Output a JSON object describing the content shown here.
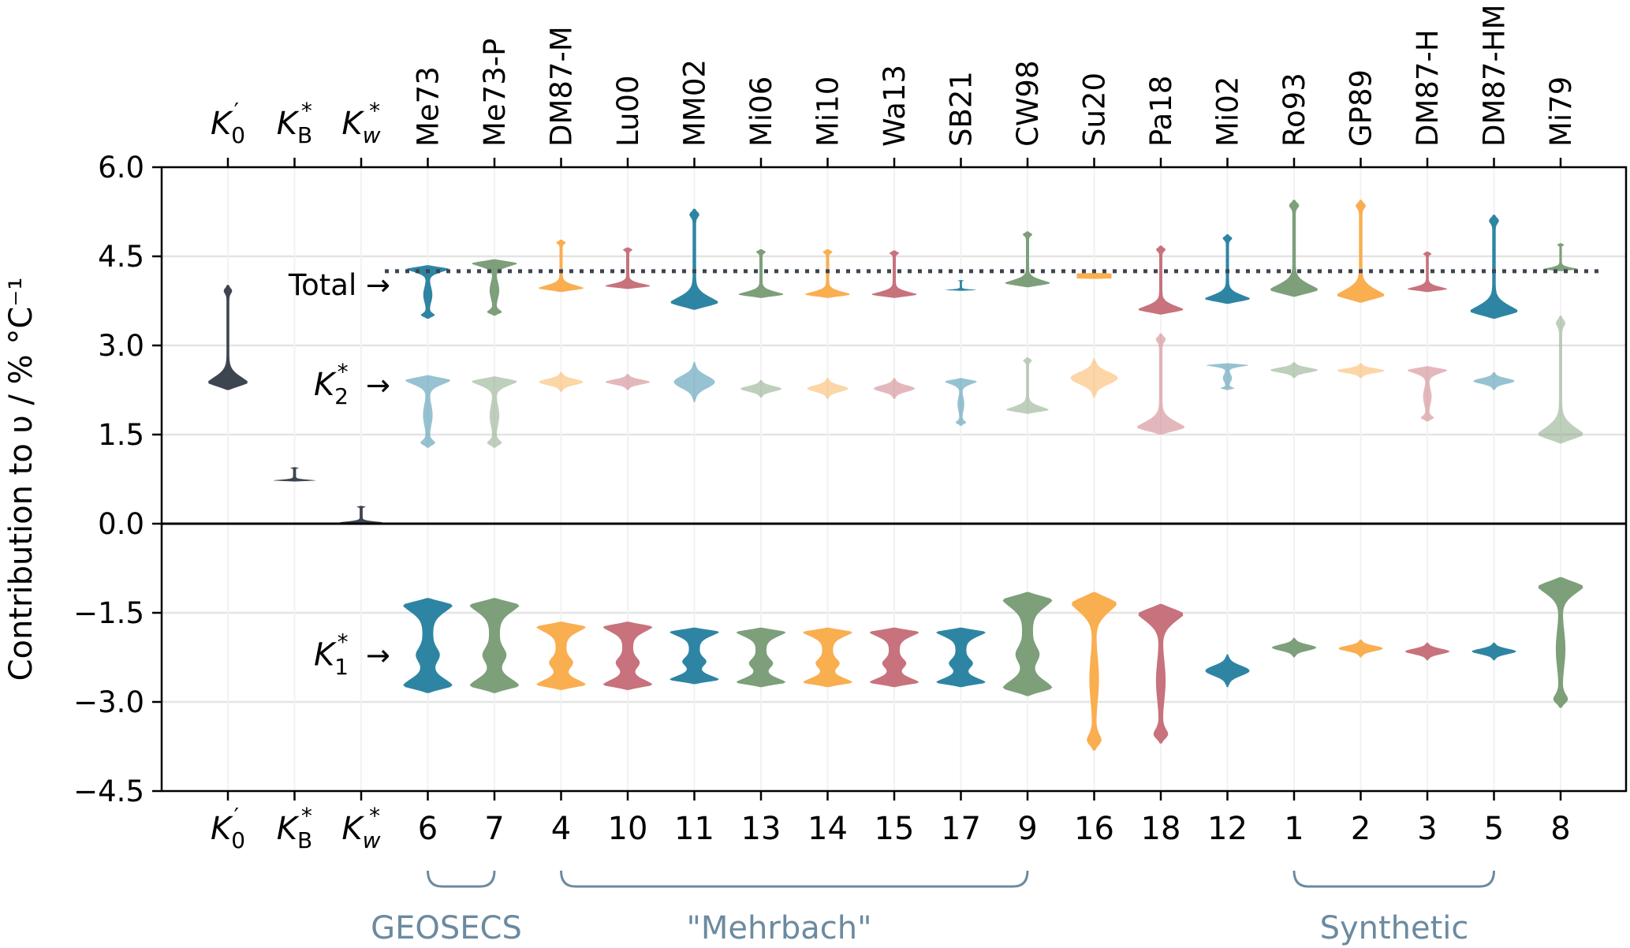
{
  "chart_data": {
    "type": "violin",
    "ylabel": "Contribution to υ / % °C⁻¹",
    "ylim": [
      -4.5,
      6.0
    ],
    "yticks": [
      "6.0",
      "4.5",
      "3.0",
      "1.5",
      "0.0",
      "−1.5",
      "−3.0",
      "−4.5"
    ],
    "yticks_values": [
      6.0,
      4.5,
      3.0,
      1.5,
      0.0,
      -1.5,
      -3.0,
      -4.5
    ],
    "grid": true,
    "columns": [
      {
        "top": "K0′",
        "bottom": "K0′",
        "math": true,
        "sym": "K",
        "sub": "0",
        "sup": "′"
      },
      {
        "top": "K*B",
        "bottom": "K*B",
        "math": true,
        "sym": "K",
        "sub": "B",
        "sup": "*"
      },
      {
        "top": "K*w",
        "bottom": "K*w",
        "math": true,
        "sym": "K",
        "sub": "w",
        "sup": "*",
        "subItalic": true
      },
      {
        "top": "Me73",
        "bottom": "6"
      },
      {
        "top": "Me73-P",
        "bottom": "7"
      },
      {
        "top": "DM87-M",
        "bottom": "4"
      },
      {
        "top": "Lu00",
        "bottom": "10"
      },
      {
        "top": "MM02",
        "bottom": "11"
      },
      {
        "top": "Mi06",
        "bottom": "13"
      },
      {
        "top": "Mi10",
        "bottom": "14"
      },
      {
        "top": "Wa13",
        "bottom": "15"
      },
      {
        "top": "SB21",
        "bottom": "17"
      },
      {
        "top": "CW98",
        "bottom": "9"
      },
      {
        "top": "Su20",
        "bottom": "16"
      },
      {
        "top": "Pa18",
        "bottom": "18"
      },
      {
        "top": "Mi02",
        "bottom": "12"
      },
      {
        "top": "Ro93",
        "bottom": "1"
      },
      {
        "top": "GP89",
        "bottom": "2"
      },
      {
        "top": "DM87-H",
        "bottom": "3"
      },
      {
        "top": "DM87-HM",
        "bottom": "5"
      },
      {
        "top": "Mi79",
        "bottom": "8"
      }
    ],
    "colors": {
      "dark": "#3d4550",
      "teal": "#2e85a3",
      "green": "#7d9f7a",
      "orange": "#f9ae50",
      "rose": "#c7727c",
      "axis": "#000000",
      "grid": "#e4e4e4",
      "group": "#6b8aa0"
    },
    "total_value": 4.25,
    "annotations": [
      {
        "name": "total",
        "text": "Total →"
      },
      {
        "name": "k2",
        "sym": "K",
        "sub": "2",
        "sup": "*",
        "arrow": "→"
      },
      {
        "name": "k1",
        "sym": "K",
        "sub": "1",
        "sup": "*",
        "arrow": "→"
      }
    ],
    "groups": [
      {
        "label": "GEOSECS",
        "from": 3,
        "to": 4
      },
      {
        "label": "\"Mehrbach\"",
        "from": 5,
        "to": 12
      },
      {
        "label": "Synthetic",
        "from": 16,
        "to": 19
      }
    ],
    "series": [
      {
        "name": "K0′",
        "violins": [
          {
            "col": 0,
            "color": "dark",
            "alpha": 1,
            "lo": 2.25,
            "hi": 4.02,
            "shape": "bottom",
            "w": 0.75
          }
        ]
      },
      {
        "name": "K*B",
        "violins": [
          {
            "col": 1,
            "color": "dark",
            "alpha": 1,
            "lo": 0.71,
            "hi": 0.95,
            "shape": "bottom",
            "w": 0.8
          }
        ]
      },
      {
        "name": "K*w",
        "violins": [
          {
            "col": 2,
            "color": "dark",
            "alpha": 1,
            "lo": 0.0,
            "hi": 0.3,
            "shape": "bottom",
            "w": 0.8
          }
        ]
      },
      {
        "name": "Total",
        "violins": [
          {
            "col": 3,
            "color": "teal",
            "alpha": 1,
            "lo": 3.45,
            "hi": 4.35,
            "shape": "top",
            "w": 0.8
          },
          {
            "col": 4,
            "color": "green",
            "alpha": 1,
            "lo": 3.5,
            "hi": 4.45,
            "shape": "top",
            "w": 0.85
          },
          {
            "col": 5,
            "color": "orange",
            "alpha": 1,
            "lo": 3.9,
            "hi": 4.78,
            "shape": "bottom",
            "w": 0.85
          },
          {
            "col": 6,
            "color": "rose",
            "alpha": 1,
            "lo": 3.95,
            "hi": 4.65,
            "shape": "bottom",
            "w": 0.85
          },
          {
            "col": 7,
            "color": "teal",
            "alpha": 1,
            "lo": 3.6,
            "hi": 5.3,
            "shape": "bottom",
            "w": 0.9
          },
          {
            "col": 8,
            "color": "green",
            "alpha": 1,
            "lo": 3.8,
            "hi": 4.62,
            "shape": "bottom",
            "w": 0.85
          },
          {
            "col": 9,
            "color": "orange",
            "alpha": 1,
            "lo": 3.8,
            "hi": 4.62,
            "shape": "bottom",
            "w": 0.85
          },
          {
            "col": 10,
            "color": "rose",
            "alpha": 1,
            "lo": 3.8,
            "hi": 4.6,
            "shape": "bottom",
            "w": 0.85
          },
          {
            "col": 11,
            "color": "teal",
            "alpha": 1,
            "lo": 3.92,
            "hi": 4.1,
            "shape": "bottom",
            "w": 0.6
          },
          {
            "col": 12,
            "color": "green",
            "alpha": 1,
            "lo": 3.98,
            "hi": 4.92,
            "shape": "bottom",
            "w": 0.85
          },
          {
            "col": 13,
            "color": "orange",
            "alpha": 1,
            "lo": 4.12,
            "hi": 4.22,
            "shape": "flat",
            "w": 0.55
          },
          {
            "col": 14,
            "color": "rose",
            "alpha": 1,
            "lo": 3.52,
            "hi": 4.68,
            "shape": "bottom",
            "w": 0.85
          },
          {
            "col": 15,
            "color": "teal",
            "alpha": 1,
            "lo": 3.7,
            "hi": 4.87,
            "shape": "bottom",
            "w": 0.85
          },
          {
            "col": 16,
            "color": "green",
            "alpha": 1,
            "lo": 3.82,
            "hi": 5.45,
            "shape": "bottom",
            "w": 0.9
          },
          {
            "col": 17,
            "color": "orange",
            "alpha": 1,
            "lo": 3.72,
            "hi": 5.45,
            "shape": "bottom",
            "w": 0.9
          },
          {
            "col": 18,
            "color": "rose",
            "alpha": 1,
            "lo": 3.9,
            "hi": 4.58,
            "shape": "bottom",
            "w": 0.75
          },
          {
            "col": 19,
            "color": "teal",
            "alpha": 1,
            "lo": 3.45,
            "hi": 5.2,
            "shape": "bottom",
            "w": 0.9
          },
          {
            "col": 20,
            "color": "green",
            "alpha": 1,
            "lo": 4.25,
            "hi": 4.72,
            "shape": "bottom",
            "w": 0.65
          }
        ]
      },
      {
        "name": "K*2",
        "violins": [
          {
            "col": 3,
            "color": "teal",
            "alpha": 0.5,
            "lo": 1.28,
            "hi": 2.5,
            "shape": "top",
            "w": 0.85
          },
          {
            "col": 4,
            "color": "green",
            "alpha": 0.5,
            "lo": 1.28,
            "hi": 2.48,
            "shape": "top",
            "w": 0.85
          },
          {
            "col": 5,
            "color": "orange",
            "alpha": 0.5,
            "lo": 2.22,
            "hi": 2.55,
            "shape": "mid",
            "w": 0.7
          },
          {
            "col": 6,
            "color": "rose",
            "alpha": 0.5,
            "lo": 2.25,
            "hi": 2.52,
            "shape": "mid",
            "w": 0.7
          },
          {
            "col": 7,
            "color": "teal",
            "alpha": 0.5,
            "lo": 2.05,
            "hi": 2.72,
            "shape": "mid",
            "w": 0.65
          },
          {
            "col": 8,
            "color": "green",
            "alpha": 0.5,
            "lo": 2.12,
            "hi": 2.42,
            "shape": "mid",
            "w": 0.65
          },
          {
            "col": 9,
            "color": "orange",
            "alpha": 0.5,
            "lo": 2.1,
            "hi": 2.45,
            "shape": "mid",
            "w": 0.65
          },
          {
            "col": 10,
            "color": "rose",
            "alpha": 0.5,
            "lo": 2.1,
            "hi": 2.45,
            "shape": "mid",
            "w": 0.65
          },
          {
            "col": 11,
            "color": "teal",
            "alpha": 0.5,
            "lo": 1.65,
            "hi": 2.45,
            "shape": "top",
            "w": 0.6
          },
          {
            "col": 12,
            "color": "green",
            "alpha": 0.5,
            "lo": 1.85,
            "hi": 2.8,
            "shape": "bottom",
            "w": 0.8
          },
          {
            "col": 13,
            "color": "orange",
            "alpha": 0.5,
            "lo": 2.12,
            "hi": 2.78,
            "shape": "mid",
            "w": 0.75
          },
          {
            "col": 14,
            "color": "rose",
            "alpha": 0.5,
            "lo": 1.5,
            "hi": 3.2,
            "shape": "bottom",
            "w": 0.9
          },
          {
            "col": 15,
            "color": "teal",
            "alpha": 0.5,
            "lo": 2.25,
            "hi": 2.7,
            "shape": "top",
            "w": 0.8
          },
          {
            "col": 16,
            "color": "green",
            "alpha": 0.5,
            "lo": 2.45,
            "hi": 2.72,
            "shape": "mid",
            "w": 0.75
          },
          {
            "col": 17,
            "color": "orange",
            "alpha": 0.5,
            "lo": 2.45,
            "hi": 2.7,
            "shape": "mid",
            "w": 0.75
          },
          {
            "col": 18,
            "color": "rose",
            "alpha": 0.5,
            "lo": 1.72,
            "hi": 2.65,
            "shape": "top",
            "w": 0.75
          },
          {
            "col": 19,
            "color": "teal",
            "alpha": 0.5,
            "lo": 2.25,
            "hi": 2.55,
            "shape": "mid",
            "w": 0.65
          },
          {
            "col": 20,
            "color": "green",
            "alpha": 0.5,
            "lo": 1.35,
            "hi": 3.5,
            "shape": "bottom",
            "w": 0.85
          }
        ]
      },
      {
        "name": "K*1",
        "violins": [
          {
            "col": 3,
            "color": "teal",
            "alpha": 1,
            "lo": -2.85,
            "hi": -1.25,
            "shape": "both",
            "w": 0.85
          },
          {
            "col": 4,
            "color": "green",
            "alpha": 1,
            "lo": -2.85,
            "hi": -1.25,
            "shape": "both",
            "w": 0.85
          },
          {
            "col": 5,
            "color": "orange",
            "alpha": 1,
            "lo": -2.8,
            "hi": -1.65,
            "shape": "both",
            "w": 0.85
          },
          {
            "col": 6,
            "color": "rose",
            "alpha": 1,
            "lo": -2.8,
            "hi": -1.65,
            "shape": "both",
            "w": 0.85
          },
          {
            "col": 7,
            "color": "teal",
            "alpha": 1,
            "lo": -2.7,
            "hi": -1.75,
            "shape": "both",
            "w": 0.85
          },
          {
            "col": 8,
            "color": "green",
            "alpha": 1,
            "lo": -2.75,
            "hi": -1.75,
            "shape": "both",
            "w": 0.85
          },
          {
            "col": 9,
            "color": "orange",
            "alpha": 1,
            "lo": -2.75,
            "hi": -1.75,
            "shape": "both",
            "w": 0.85
          },
          {
            "col": 10,
            "color": "rose",
            "alpha": 1,
            "lo": -2.75,
            "hi": -1.75,
            "shape": "both",
            "w": 0.85
          },
          {
            "col": 11,
            "color": "teal",
            "alpha": 1,
            "lo": -2.75,
            "hi": -1.75,
            "shape": "both",
            "w": 0.85
          },
          {
            "col": 12,
            "color": "green",
            "alpha": 1,
            "lo": -2.9,
            "hi": -1.15,
            "shape": "both",
            "w": 0.85
          },
          {
            "col": 13,
            "color": "orange",
            "alpha": 1,
            "lo": -3.82,
            "hi": -1.15,
            "shape": "top",
            "w": 0.85
          },
          {
            "col": 14,
            "color": "rose",
            "alpha": 1,
            "lo": -3.7,
            "hi": -1.35,
            "shape": "top",
            "w": 0.85
          },
          {
            "col": 15,
            "color": "teal",
            "alpha": 1,
            "lo": -2.75,
            "hi": -2.2,
            "shape": "mid",
            "w": 0.7
          },
          {
            "col": 16,
            "color": "green",
            "alpha": 1,
            "lo": -2.25,
            "hi": -1.92,
            "shape": "mid",
            "w": 0.7
          },
          {
            "col": 17,
            "color": "orange",
            "alpha": 1,
            "lo": -2.25,
            "hi": -1.95,
            "shape": "mid",
            "w": 0.7
          },
          {
            "col": 18,
            "color": "rose",
            "alpha": 1,
            "lo": -2.3,
            "hi": -2.0,
            "shape": "mid",
            "w": 0.7
          },
          {
            "col": 19,
            "color": "teal",
            "alpha": 1,
            "lo": -2.3,
            "hi": -2.0,
            "shape": "mid",
            "w": 0.7
          },
          {
            "col": 20,
            "color": "green",
            "alpha": 1,
            "lo": -3.1,
            "hi": -0.9,
            "shape": "top",
            "w": 0.85
          }
        ]
      }
    ]
  }
}
